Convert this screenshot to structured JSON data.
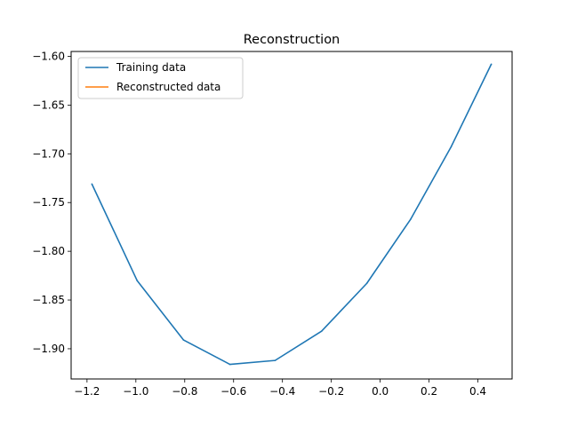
{
  "chart_data": {
    "type": "line",
    "title": "Reconstruction",
    "xlabel": "",
    "ylabel": "",
    "xlim": [
      -1.265,
      0.54
    ],
    "ylim": [
      -1.931,
      -1.595
    ],
    "xticks": [
      -1.2,
      -1.0,
      -0.8,
      -0.6,
      -0.4,
      -0.2,
      0.0,
      0.2,
      0.4
    ],
    "xtick_labels": [
      "−1.2",
      "−1.0",
      "−0.8",
      "−0.6",
      "−0.4",
      "−0.2",
      "0.0",
      "0.2",
      "0.4"
    ],
    "yticks": [
      -1.9,
      -1.85,
      -1.8,
      -1.75,
      -1.7,
      -1.65,
      -1.6
    ],
    "ytick_labels": [
      "−1.90",
      "−1.85",
      "−1.80",
      "−1.75",
      "−1.70",
      "−1.65",
      "−1.60"
    ],
    "grid": false,
    "legend_position": "top-left",
    "series": [
      {
        "name": "Training data",
        "color": "#1f77b4",
        "x": [
          -1.18,
          -0.995,
          -0.805,
          -0.615,
          -0.43,
          -0.24,
          -0.055,
          0.125,
          0.29,
          0.455
        ],
        "y": [
          -1.731,
          -1.83,
          -1.891,
          -1.916,
          -1.912,
          -1.882,
          -1.833,
          -1.767,
          -1.693,
          -1.608
        ]
      },
      {
        "name": "Reconstructed data",
        "color": "#ff7f0e",
        "x": [],
        "y": []
      }
    ]
  }
}
